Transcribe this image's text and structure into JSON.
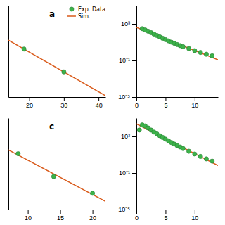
{
  "chart_data": [
    {
      "type": "scatter",
      "annotations": [
        "a"
      ],
      "legend": "upper right",
      "tick_labels": "x",
      "xlim": [
        14,
        42
      ],
      "xticks": [
        20,
        30,
        40
      ],
      "ylim": [
        0.0,
        0.8
      ],
      "series": [
        {
          "name": "Exp. Data",
          "type": "scatter",
          "marker": "circle",
          "color": "#3cb34a",
          "x": [
            18.5,
            30.0
          ],
          "values": [
            0.42,
            0.22
          ]
        },
        {
          "name": "Sim.",
          "type": "line",
          "line_style": "solid",
          "color": "#d95a1a",
          "x": [
            14,
            42
          ],
          "values": [
            0.4983,
            0.0113
          ]
        }
      ]
    },
    {
      "type": "scatter",
      "log": "y",
      "xlim": [
        0,
        14
      ],
      "xticks": [
        0,
        5,
        10
      ],
      "ylim": [
        1e-05,
        100000
      ],
      "yticks": [
        {
          "value": 1e-05,
          "label": "10⁻⁵"
        },
        {
          "value": 0.1,
          "label": "10⁻¹"
        },
        {
          "value": 1000,
          "label": "10³"
        }
      ],
      "series": [
        {
          "type": "scatter",
          "marker": "circle",
          "color": "#3cb34a",
          "x": [
            1,
            1.5,
            2,
            2.5,
            3,
            3.5,
            4,
            4.5,
            5,
            5.5,
            6,
            6.5,
            7,
            7.5,
            8,
            9,
            10,
            11,
            12,
            13
          ],
          "values": [
            300,
            220,
            160,
            110,
            78,
            55,
            38,
            27,
            19,
            14,
            10,
            7.5,
            5.5,
            4.2,
            3.2,
            2.0,
            1.2,
            0.75,
            0.48,
            0.32
          ]
        },
        {
          "type": "line",
          "line_style": "solid",
          "color": "#d95a1a",
          "x": [
            0.01,
            14
          ],
          "values": [
            412.0,
            0.1178
          ]
        }
      ]
    },
    {
      "type": "scatter",
      "annotations": [
        "c"
      ],
      "tick_labels": "x",
      "xlim": [
        7,
        22
      ],
      "xticks": [
        10,
        15,
        20
      ],
      "ylim": [
        0.0,
        1.8
      ],
      "series": [
        {
          "type": "scatter",
          "marker": "circle",
          "color": "#3cb34a",
          "x": [
            8.5,
            14.0,
            20.0
          ],
          "values": [
            1.1,
            0.65,
            0.32
          ]
        },
        {
          "type": "line",
          "line_style": "solid",
          "color": "#d95a1a",
          "x": [
            7,
            22
          ],
          "values": [
            1.1747,
            0.1602
          ]
        }
      ]
    },
    {
      "type": "scatter",
      "log": "y",
      "xlim": [
        0,
        14
      ],
      "xticks": [
        0,
        5,
        10
      ],
      "ylim": [
        1e-05,
        100000
      ],
      "yticks": [
        {
          "value": 1e-05,
          "label": "10⁻⁵"
        },
        {
          "value": 0.1,
          "label": "10⁻¹"
        },
        {
          "value": 1000,
          "label": "10³"
        }
      ],
      "series": [
        {
          "type": "scatter",
          "marker": "circle",
          "color": "#3cb34a",
          "x": [
            0.5,
            1,
            1.5,
            2,
            2.5,
            3,
            3.5,
            4,
            4.5,
            5,
            5.5,
            6,
            6.5,
            7,
            7.5,
            8,
            9,
            10,
            11,
            12,
            13
          ],
          "values": [
            5000,
            18000,
            14000,
            8500,
            5000,
            3000,
            1900,
            1200,
            780,
            500,
            330,
            215,
            145,
            100,
            70,
            48,
            24,
            12,
            6.5,
            3.5,
            2.0
          ]
        },
        {
          "type": "line",
          "line_style": "solid",
          "color": "#d95a1a",
          "x": [
            0.01,
            14
          ],
          "values": [
            23580,
            0.6511
          ]
        }
      ]
    }
  ]
}
